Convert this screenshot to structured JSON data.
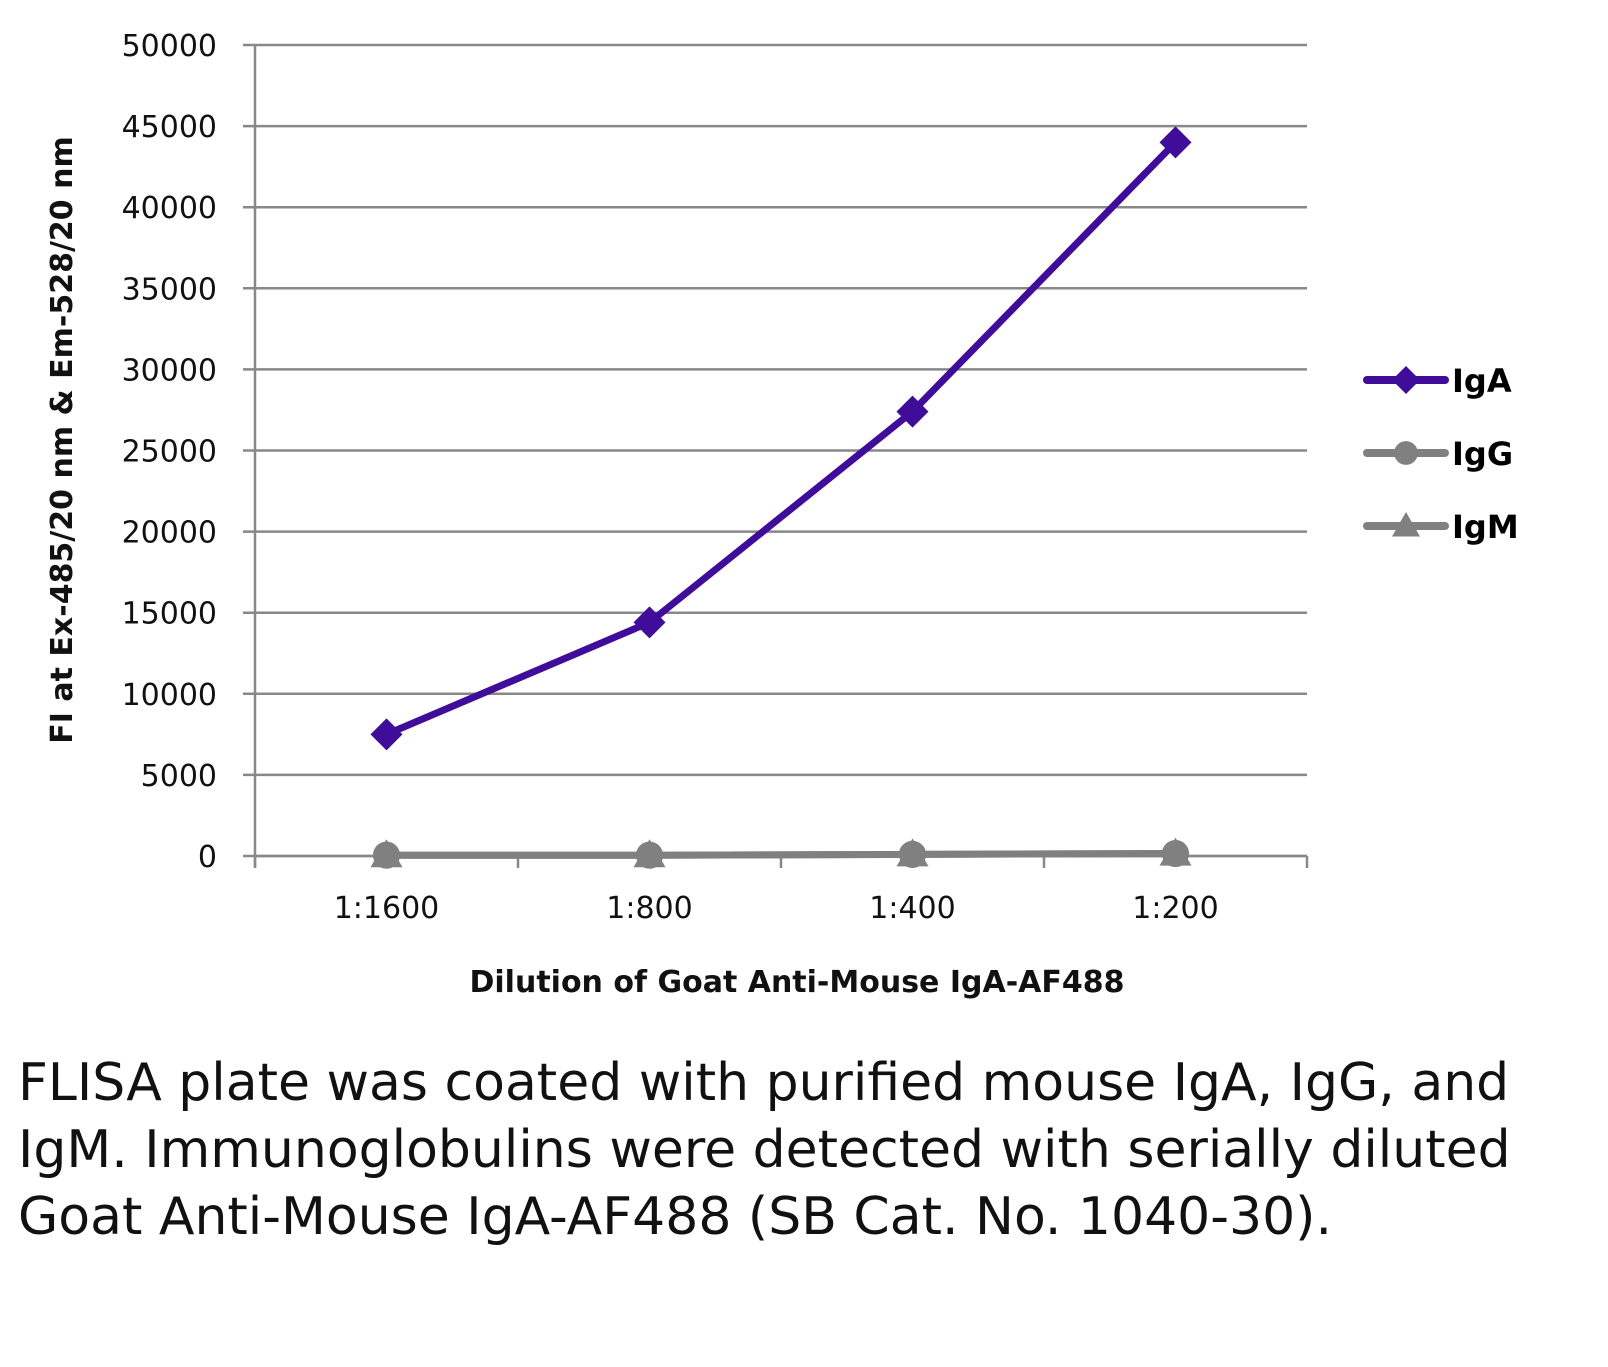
{
  "chart_data": {
    "type": "line",
    "title": "",
    "xlabel": "Dilution of Goat Anti-Mouse IgA-AF488",
    "ylabel": "FI at Ex-485/20 nm & Em-528/20 nm",
    "categories": [
      "1:1600",
      "1:800",
      "1:400",
      "1:200"
    ],
    "ylim": [
      0,
      50000
    ],
    "yticks": [
      0,
      5000,
      10000,
      15000,
      20000,
      25000,
      30000,
      35000,
      40000,
      45000,
      50000
    ],
    "grid": true,
    "legend": "right",
    "series": [
      {
        "name": "IgA",
        "values": [
          7500,
          14400,
          27400,
          44000
        ],
        "color": "#3f0d99",
        "marker": "diamond"
      },
      {
        "name": "IgG",
        "values": [
          50,
          50,
          100,
          150
        ],
        "color": "#808080",
        "marker": "circle"
      },
      {
        "name": "IgM",
        "values": [
          50,
          50,
          100,
          150
        ],
        "color": "#808080",
        "marker": "triangle"
      }
    ]
  },
  "caption": "FLISA plate was coated with purified mouse IgA, IgG, and IgM.  Immunoglobulins were detected with serially diluted Goat Anti-Mouse IgA-AF488 (SB Cat. No. 1040-30)."
}
